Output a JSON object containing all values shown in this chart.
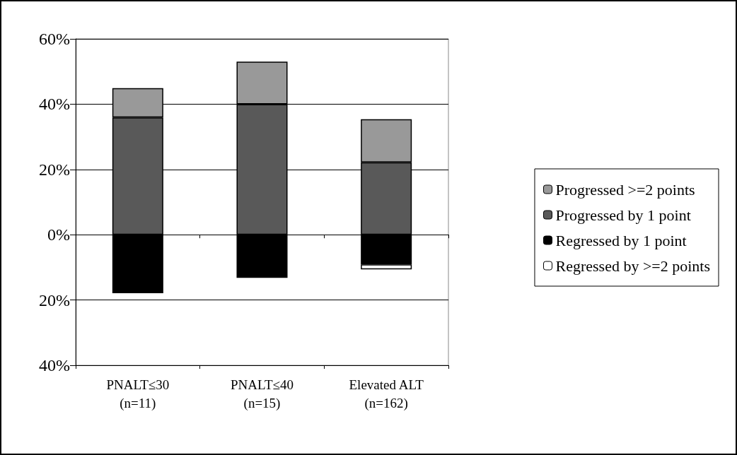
{
  "chart_data": {
    "type": "bar",
    "stacked": true,
    "categories": [
      "PNALT≤30\n(n=11)",
      "PNALT≤40\n(n=15)",
      "Elevated ALT\n(n=162)"
    ],
    "series": [
      {
        "name": "Progressed by 1 point",
        "color": "#595959",
        "values": [
          35.9,
          40,
          22.2
        ]
      },
      {
        "name": "Progressed >=2 points",
        "color": "#999999",
        "values": [
          9,
          13,
          13.2
        ]
      },
      {
        "name": "Regressed by 1 point",
        "color": "#000000",
        "values": [
          -17.9,
          -13.2,
          -9.1
        ]
      },
      {
        "name": "Regressed by >=2 points",
        "color": "#ffffff",
        "values": [
          null,
          null,
          -1.5
        ]
      }
    ],
    "ylim": [
      -40,
      60
    ],
    "yticks": [
      {
        "value": -40,
        "label": "40%"
      },
      {
        "value": -20,
        "label": "20%"
      },
      {
        "value": 0,
        "label": "0%"
      },
      {
        "value": 20,
        "label": "20%"
      },
      {
        "value": 40,
        "label": "40%"
      },
      {
        "value": 60,
        "label": "60%"
      }
    ],
    "grid": "y",
    "legend": "right"
  }
}
